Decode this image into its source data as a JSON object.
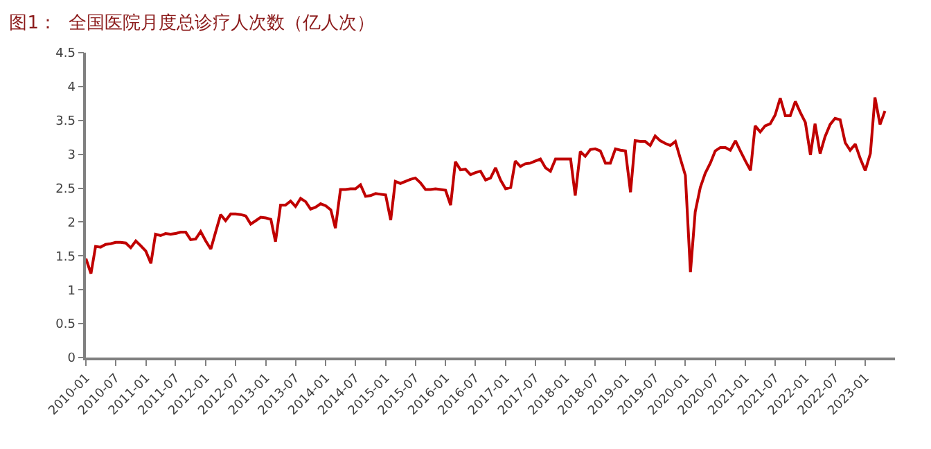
{
  "chart_data": {
    "type": "line",
    "title": "图1：  全国医院月度总诊疗人次数（亿人次）",
    "x": [
      "2010-01",
      "2010-02",
      "2010-03",
      "2010-04",
      "2010-05",
      "2010-06",
      "2010-07",
      "2010-08",
      "2010-09",
      "2010-10",
      "2010-11",
      "2010-12",
      "2011-01",
      "2011-02",
      "2011-03",
      "2011-04",
      "2011-05",
      "2011-06",
      "2011-07",
      "2011-08",
      "2011-09",
      "2011-10",
      "2011-11",
      "2011-12",
      "2012-01",
      "2012-02",
      "2012-03",
      "2012-04",
      "2012-05",
      "2012-06",
      "2012-07",
      "2012-08",
      "2012-09",
      "2012-10",
      "2012-11",
      "2012-12",
      "2013-01",
      "2013-02",
      "2013-03",
      "2013-04",
      "2013-05",
      "2013-06",
      "2013-07",
      "2013-08",
      "2013-09",
      "2013-10",
      "2013-11",
      "2013-12",
      "2014-01",
      "2014-02",
      "2014-03",
      "2014-04",
      "2014-05",
      "2014-06",
      "2014-07",
      "2014-08",
      "2014-09",
      "2014-10",
      "2014-11",
      "2014-12",
      "2015-01",
      "2015-02",
      "2015-03",
      "2015-04",
      "2015-05",
      "2015-06",
      "2015-07",
      "2015-08",
      "2015-09",
      "2015-10",
      "2015-11",
      "2015-12",
      "2016-01",
      "2016-02",
      "2016-03",
      "2016-04",
      "2016-05",
      "2016-06",
      "2016-07",
      "2016-08",
      "2016-09",
      "2016-10",
      "2016-11",
      "2016-12",
      "2017-01",
      "2017-02",
      "2017-03",
      "2017-04",
      "2017-05",
      "2017-06",
      "2017-07",
      "2017-08",
      "2017-09",
      "2017-10",
      "2017-11",
      "2017-12",
      "2018-01",
      "2018-02",
      "2018-03",
      "2018-04",
      "2018-05",
      "2018-06",
      "2018-07",
      "2018-08",
      "2018-09",
      "2018-10",
      "2018-11",
      "2018-12",
      "2019-01",
      "2019-02",
      "2019-03",
      "2019-04",
      "2019-05",
      "2019-06",
      "2019-07",
      "2019-08",
      "2019-09",
      "2019-10",
      "2019-11",
      "2019-12",
      "2020-01",
      "2020-02",
      "2020-03",
      "2020-04",
      "2020-05",
      "2020-06",
      "2020-07",
      "2020-08",
      "2020-09",
      "2020-10",
      "2020-11",
      "2020-12",
      "2021-01",
      "2021-02",
      "2021-03",
      "2021-04",
      "2021-05",
      "2021-06",
      "2021-07",
      "2021-08",
      "2021-09",
      "2021-10",
      "2021-11",
      "2021-12",
      "2022-01",
      "2022-02",
      "2022-03",
      "2022-04",
      "2022-05",
      "2022-06",
      "2022-07",
      "2022-08",
      "2022-09",
      "2022-10",
      "2022-11",
      "2022-12",
      "2023-01",
      "2023-02",
      "2023-03",
      "2023-04",
      "2023-05"
    ],
    "series": [
      {
        "color": "#c00000",
        "values": [
          1.46,
          1.24,
          1.64,
          1.63,
          1.67,
          1.68,
          1.7,
          1.7,
          1.69,
          1.62,
          1.72,
          1.65,
          1.57,
          1.39,
          1.82,
          1.8,
          1.83,
          1.82,
          1.83,
          1.85,
          1.85,
          1.74,
          1.75,
          1.86,
          1.72,
          1.6,
          1.85,
          2.11,
          2.02,
          2.12,
          2.12,
          2.11,
          2.09,
          1.97,
          2.02,
          2.07,
          2.06,
          2.04,
          1.71,
          2.25,
          2.25,
          2.31,
          2.23,
          2.35,
          2.3,
          2.19,
          2.22,
          2.27,
          2.24,
          2.18,
          1.91,
          2.48,
          2.48,
          2.49,
          2.49,
          2.55,
          2.38,
          2.39,
          2.42,
          2.41,
          2.4,
          2.03,
          2.6,
          2.57,
          2.6,
          2.63,
          2.65,
          2.58,
          2.48,
          2.48,
          2.49,
          2.48,
          2.47,
          2.25,
          2.89,
          2.77,
          2.78,
          2.7,
          2.73,
          2.75,
          2.62,
          2.65,
          2.8,
          2.62,
          2.49,
          2.51,
          2.9,
          2.82,
          2.86,
          2.87,
          2.9,
          2.93,
          2.8,
          2.75,
          2.93,
          2.93,
          2.93,
          2.93,
          2.39,
          3.04,
          2.97,
          3.07,
          3.08,
          3.05,
          2.87,
          2.87,
          3.08,
          3.06,
          3.05,
          2.44,
          3.2,
          3.19,
          3.19,
          3.13,
          3.27,
          3.2,
          3.16,
          3.13,
          3.19,
          2.94,
          2.69,
          1.26,
          2.15,
          2.51,
          2.72,
          2.87,
          3.05,
          3.1,
          3.1,
          3.06,
          3.2,
          3.05,
          2.9,
          2.76,
          3.42,
          3.33,
          3.42,
          3.45,
          3.58,
          3.83,
          3.57,
          3.57,
          3.78,
          3.62,
          3.47,
          2.99,
          3.45,
          3.01,
          3.26,
          3.44,
          3.53,
          3.51,
          3.17,
          3.06,
          3.15,
          2.94,
          2.76,
          3.01,
          3.84,
          3.44,
          3.64
        ]
      }
    ],
    "xlim": [
      "2010-01",
      "2023-07"
    ],
    "xticks": [
      "2010-01",
      "2010-07",
      "2011-01",
      "2011-07",
      "2012-01",
      "2012-07",
      "2013-01",
      "2013-07",
      "2014-01",
      "2014-07",
      "2015-01",
      "2015-07",
      "2016-01",
      "2016-07",
      "2017-01",
      "2017-07",
      "2018-01",
      "2018-07",
      "2019-01",
      "2019-07",
      "2020-01",
      "2020-07",
      "2021-01",
      "2021-07",
      "2022-01",
      "2022-07",
      "2023-01"
    ],
    "ylim": [
      0,
      4.5
    ],
    "yticks": [
      0,
      0.5,
      1,
      1.5,
      2,
      2.5,
      3,
      3.5,
      4,
      4.5
    ],
    "marker": "none",
    "line_style": "solid"
  }
}
